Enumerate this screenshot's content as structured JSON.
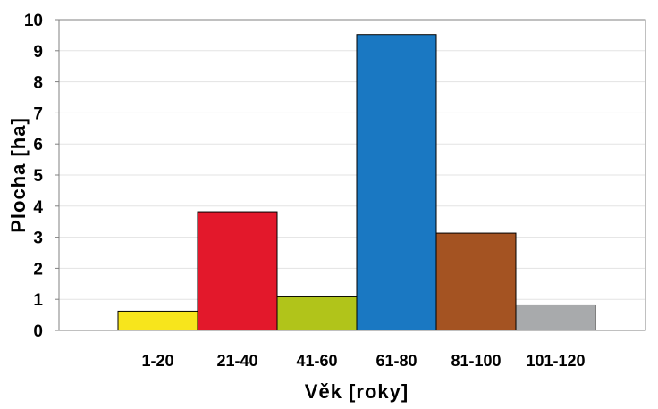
{
  "chart_data": {
    "type": "bar",
    "categories": [
      "1-20",
      "21-40",
      "41-60",
      "61-80",
      "81-100",
      "101-120"
    ],
    "values": [
      0.62,
      3.82,
      1.08,
      9.52,
      3.13,
      0.82
    ],
    "colors": [
      "#f7e51c",
      "#e3182b",
      "#b1c41a",
      "#1a78c2",
      "#a45322",
      "#a8aaac"
    ],
    "xlabel": "Věk [roky]",
    "ylabel": "Plocha [ha]",
    "ylim": [
      0,
      10
    ],
    "yticks": [
      "0",
      "1",
      "2",
      "3",
      "4",
      "5",
      "6",
      "7",
      "8",
      "9",
      "10"
    ],
    "grid": true,
    "legend": "none",
    "title": ""
  }
}
